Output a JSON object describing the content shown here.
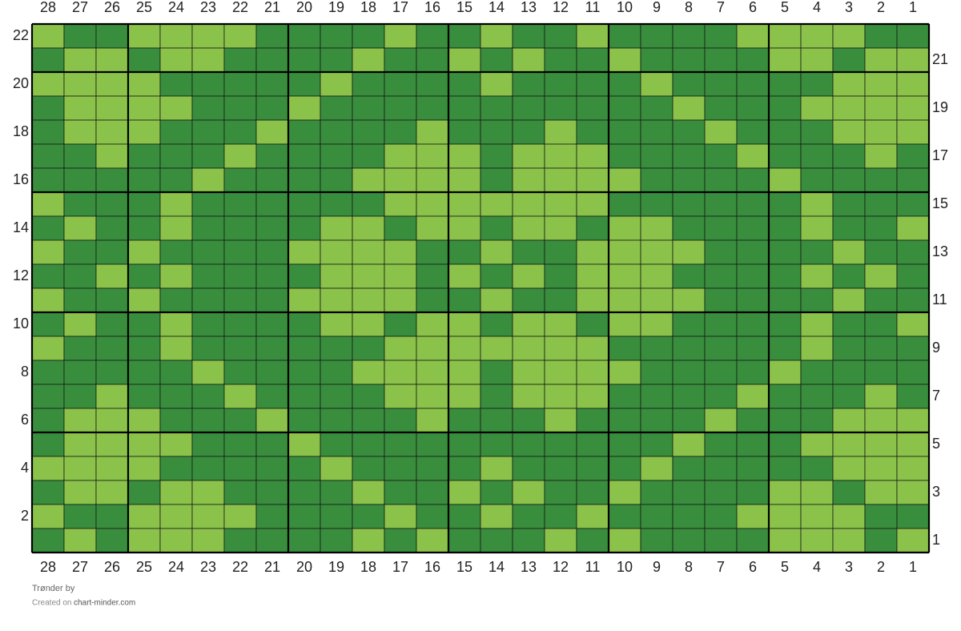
{
  "title": "Trønder by",
  "credit_prefix": "Created on",
  "credit_site": "chart-minder.com",
  "colors": {
    "L": "#8bc34a",
    "D": "#388e3c"
  },
  "columns": [
    28,
    27,
    26,
    25,
    24,
    23,
    22,
    21,
    20,
    19,
    18,
    17,
    16,
    15,
    14,
    13,
    12,
    11,
    10,
    9,
    8,
    7,
    6,
    5,
    4,
    3,
    2,
    1
  ],
  "rows": [
    {
      "label": 22,
      "cells": "LDDLLLLDDDDLDDLDDLDDDDLLLLDD"
    },
    {
      "label": 21,
      "cells": "DLLDLLDDDDLDDLDLDDLDDDDLLDLL"
    },
    {
      "label": 20,
      "cells": "LLLLDDDDDLDDDDLDDDDLDDDDDLLL"
    },
    {
      "label": 19,
      "cells": "DLLLLDDDLDDDDDDDDDDDLDDDLLLL"
    },
    {
      "label": 18,
      "cells": "DLLLDDDLDDDDLDDDLDDDDLDDDLLL"
    },
    {
      "label": 17,
      "cells": "DDLDDDLDDDDLLLDLLLDDDDLDDDLD"
    },
    {
      "label": 16,
      "cells": "DDDDDLDDDDLLLLDLLLLDDDDLDDDD"
    },
    {
      "label": 15,
      "cells": "LDDDLDDDDDDLLLLLLLDDDDDDLDDD"
    },
    {
      "label": 14,
      "cells": "DLDDLDDDDLLDLLDLLDLLDDDDLDDL"
    },
    {
      "label": 13,
      "cells": "LDDLDDDDLLLLDDLDDLLLLDDDDLDD"
    },
    {
      "label": 12,
      "cells": "DDLDLDDDDLLLDLDLDLLLDDDDLDLD"
    },
    {
      "label": 11,
      "cells": "LDDLDDDDLLLLDDLDDLLLLDDDDLDD"
    },
    {
      "label": 10,
      "cells": "DLDDLDDDDLLDLLDLLDLLDDDDLDDL"
    },
    {
      "label": 9,
      "cells": "LDDDLDDDDDDLLLLLLLDDDDDDLDDD"
    },
    {
      "label": 8,
      "cells": "DDDDDLDDDDLLLLDLLLLDDDDLDDDD"
    },
    {
      "label": 7,
      "cells": "DDLDDDLDDDDLLLDLLLDDDDLDDDLD"
    },
    {
      "label": 6,
      "cells": "DLLLDDDLDDDDLDDDLDDDDLDDDLLL"
    },
    {
      "label": 5,
      "cells": "DLLLLDDDLDDDDDDDDDDDLDDDLLLL"
    },
    {
      "label": 4,
      "cells": "LLLLDDDDDLDDDDLDDDDLDDDDDLLL"
    },
    {
      "label": 3,
      "cells": "DLLDLLDDDDLDDLDLDDLDDDDLLDLL"
    },
    {
      "label": 2,
      "cells": "LDDLLLLDDDDLDDLDDLDDDDLLLLDD"
    },
    {
      "label": 1,
      "cells": "DLDLLLDDDDLDLDDDLDLDDDDLLLDL"
    }
  ]
}
